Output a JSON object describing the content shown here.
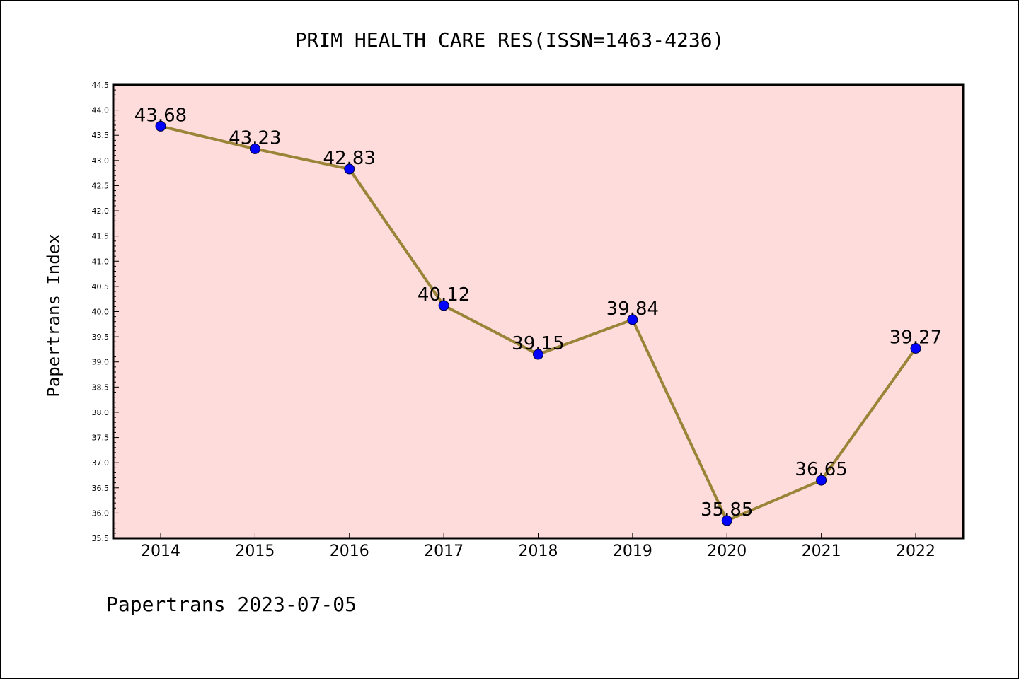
{
  "chart_data": {
    "type": "line",
    "title": "PRIM HEALTH CARE RES(ISSN=1463-4236)",
    "xlabel": "",
    "ylabel": "Papertrans Index",
    "x": [
      "2014",
      "2015",
      "2016",
      "2017",
      "2018",
      "2019",
      "2020",
      "2021",
      "2022"
    ],
    "series": [
      {
        "values": [
          43.68,
          43.23,
          42.83,
          40.12,
          39.15,
          39.84,
          35.85,
          36.65,
          39.27
        ],
        "labels": [
          "43.68",
          "43.23",
          "42.83",
          "40.12",
          "39.15",
          "39.84",
          "35.85",
          "36.65",
          "39.27"
        ]
      }
    ],
    "ylim": [
      35.5,
      44.5
    ],
    "yticks": [
      "35.5",
      "36.0",
      "36.5",
      "37.0",
      "37.5",
      "38.0",
      "38.5",
      "39.0",
      "39.5",
      "40.0",
      "40.5",
      "41.0",
      "41.5",
      "42.0",
      "42.5",
      "43.0",
      "43.5",
      "44.0",
      "44.5"
    ],
    "grid": false,
    "footer": "Papertrans 2023-07-05",
    "colors": {
      "plot_background": "#ffdcdc",
      "line": "#9a8438",
      "marker": "#0000ff"
    }
  }
}
